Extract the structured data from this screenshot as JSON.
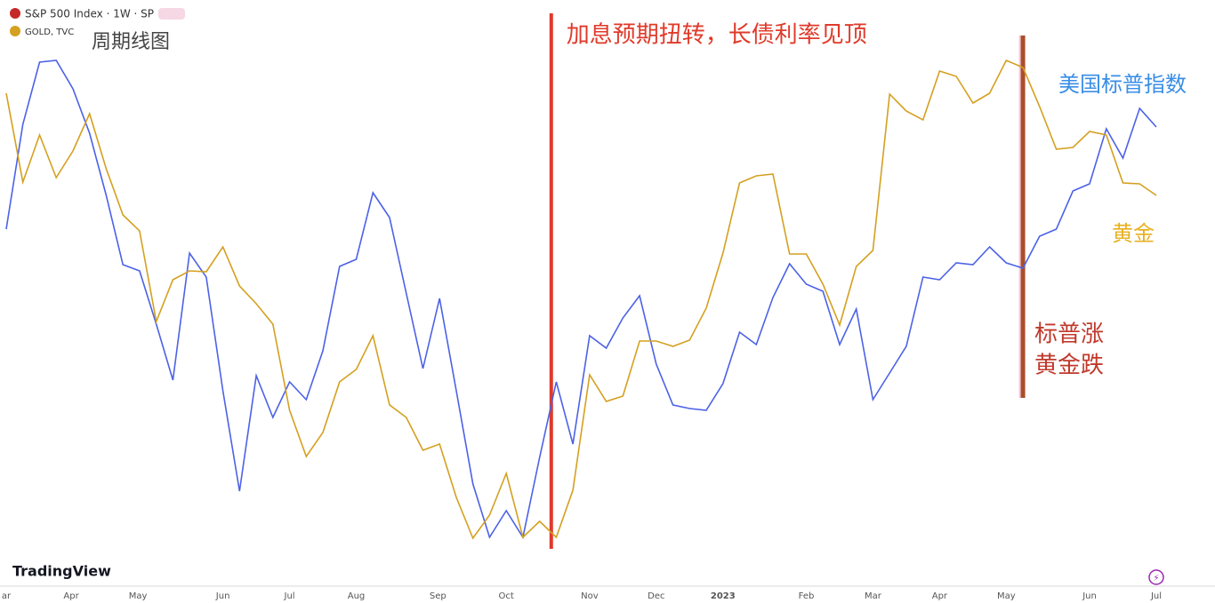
{
  "chart_data": {
    "type": "line",
    "header": {
      "main": "S&P 500 Index · 1W · SP",
      "secondary": "GOLD, TVC",
      "note": "周期线图",
      "brand": "TradingView"
    },
    "xlim": [
      0,
      69
    ],
    "xticks": [
      {
        "value": 0,
        "label": "ar"
      },
      {
        "value": 3.9,
        "label": "Apr"
      },
      {
        "value": 7.9,
        "label": "May"
      },
      {
        "value": 13,
        "label": "Jun"
      },
      {
        "value": 17,
        "label": "Jul"
      },
      {
        "value": 21,
        "label": "Aug"
      },
      {
        "value": 25.9,
        "label": "Sep"
      },
      {
        "value": 30,
        "label": "Oct"
      },
      {
        "value": 35,
        "label": "Nov"
      },
      {
        "value": 39,
        "label": "Dec"
      },
      {
        "value": 43,
        "label": "2023"
      },
      {
        "value": 48,
        "label": "Feb"
      },
      {
        "value": 52,
        "label": "Mar"
      },
      {
        "value": 56,
        "label": "Apr"
      },
      {
        "value": 60,
        "label": "May"
      },
      {
        "value": 65,
        "label": "Jun"
      },
      {
        "value": 69,
        "label": "Jul"
      }
    ],
    "series": [
      {
        "name": "S&P 500 Index · 1W · SP",
        "label": "美国标普指数",
        "color": "#4c62e6",
        "values": [
          382,
          500,
          570,
          572,
          540,
          490,
          420,
          342,
          335,
          275,
          212,
          355,
          328,
          200,
          87,
          217,
          170,
          210,
          190,
          245,
          340,
          348,
          423,
          395,
          310,
          225,
          304,
          200,
          95,
          35,
          65,
          35,
          125,
          210,
          140,
          262,
          248,
          282,
          307,
          230,
          184,
          180,
          178,
          208,
          266,
          252,
          305,
          343,
          320,
          312,
          252,
          292,
          190,
          220,
          250,
          328,
          325,
          344,
          342,
          362,
          344,
          338,
          374,
          382,
          425,
          433,
          495,
          462,
          518,
          497
        ]
      },
      {
        "name": "GOLD, TVC",
        "label": "黄金",
        "color": "#d4a020",
        "values": [
          535,
          435,
          488,
          440,
          470,
          512,
          450,
          398,
          380,
          278,
          325,
          335,
          334,
          362,
          318,
          298,
          275,
          178,
          126,
          153,
          210,
          224,
          262,
          184,
          170,
          133,
          140,
          80,
          34,
          60,
          107,
          35,
          53,
          35,
          88,
          218,
          188,
          194,
          256,
          256,
          250,
          257,
          293,
          355,
          434,
          442,
          444,
          354,
          354,
          320,
          274,
          340,
          358,
          534,
          515,
          505,
          560,
          554,
          524,
          535,
          572,
          564,
          520,
          472,
          474,
          492,
          488,
          434,
          433,
          420
        ]
      }
    ],
    "annotations": [
      {
        "text": "加息预期扭转，长债利率见顶",
        "x": 32.7,
        "color": "#e03a2a"
      },
      {
        "text": [
          "标普涨",
          "黄金跌"
        ],
        "x": 61,
        "color": "#a8502a"
      }
    ]
  }
}
